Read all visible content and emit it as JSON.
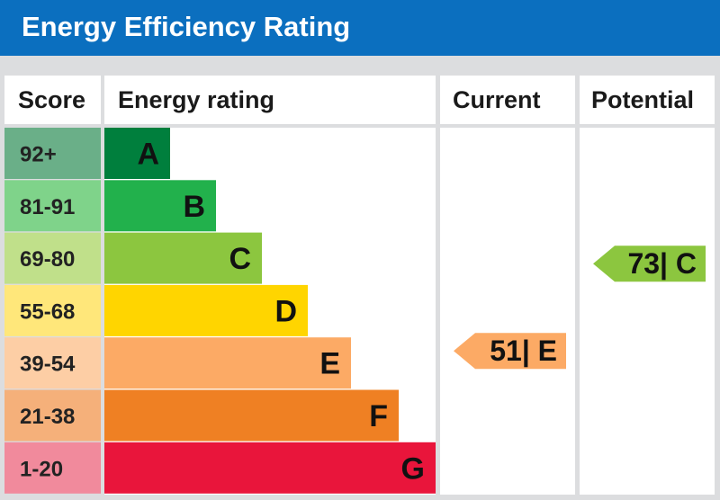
{
  "title": "Energy Efficiency Rating",
  "headers": {
    "score": "Score",
    "energy_rating": "Energy rating",
    "current": "Current",
    "potential": "Potential"
  },
  "colors": {
    "title_bar": "#0b6fbf",
    "grid": "#dcdddf",
    "panel": "#ffffff"
  },
  "chart_data": {
    "type": "bar",
    "categories": [
      "A",
      "B",
      "C",
      "D",
      "E",
      "F",
      "G"
    ],
    "score_ranges": [
      "92+",
      "81-91",
      "69-80",
      "55-68",
      "39-54",
      "21-38",
      "1-20"
    ],
    "bands": [
      {
        "letter": "A",
        "range": "92+",
        "min": 92,
        "max": 100,
        "color": "#007f3d",
        "score_color": "#6aaf88"
      },
      {
        "letter": "B",
        "range": "81-91",
        "min": 81,
        "max": 91,
        "color": "#22b14c",
        "score_color": "#7fd38a"
      },
      {
        "letter": "C",
        "range": "69-80",
        "min": 69,
        "max": 80,
        "color": "#8cc63f",
        "score_color": "#c0e08a"
      },
      {
        "letter": "D",
        "range": "55-68",
        "min": 55,
        "max": 68,
        "color": "#ffd500",
        "score_color": "#ffe77a"
      },
      {
        "letter": "E",
        "range": "39-54",
        "min": 39,
        "max": 54,
        "color": "#fcaa65",
        "score_color": "#fdcea5"
      },
      {
        "letter": "F",
        "range": "21-38",
        "min": 21,
        "max": 38,
        "color": "#ef8023",
        "score_color": "#f5b07a"
      },
      {
        "letter": "G",
        "range": "1-20",
        "min": 1,
        "max": 20,
        "color": "#e9153b",
        "score_color": "#f18a9c"
      }
    ],
    "current": {
      "value": 51,
      "band": "E",
      "label": "51| E"
    },
    "potential": {
      "value": 73,
      "band": "C",
      "label": "73| C"
    }
  }
}
